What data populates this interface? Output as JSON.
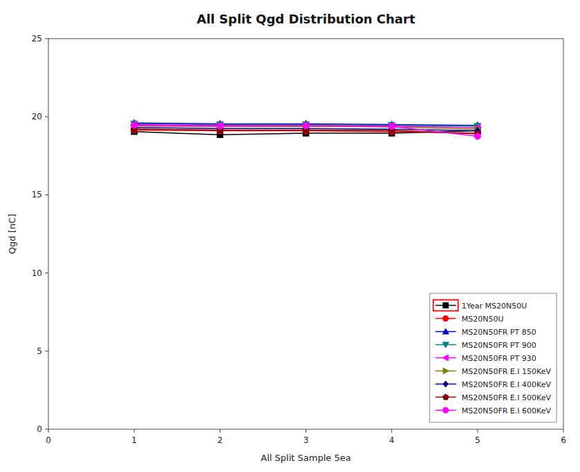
{
  "chart_data": {
    "type": "line",
    "title": "All Split Qgd Distribution Chart",
    "x_label": "All Split Sample 5ea",
    "y_label": "Qgd [nC]",
    "x": [
      1,
      2,
      3,
      4,
      5
    ],
    "xlim": [
      0,
      6
    ],
    "ylim": [
      0,
      25
    ],
    "xticks": [
      0,
      1,
      2,
      3,
      4,
      5,
      6
    ],
    "yticks": [
      0,
      5,
      10,
      15,
      20,
      25
    ],
    "grid": false,
    "legend": "lower right",
    "series": [
      {
        "name": "1Year MS20N50U",
        "color": "black",
        "marker": "square",
        "line_style": "solid",
        "values": [
          19.05,
          18.85,
          18.95,
          18.95,
          19.1
        ]
      },
      {
        "name": "MS20N50U",
        "color": "red",
        "marker": "circle",
        "line_style": "solid",
        "values": [
          19.15,
          19.1,
          19.1,
          19.05,
          18.95
        ]
      },
      {
        "name": "MS20N50FR PT 850",
        "color": "#0000CC",
        "marker": "triangle-up",
        "line_style": "solid",
        "values": [
          19.6,
          19.55,
          19.55,
          19.5,
          19.45
        ]
      },
      {
        "name": "MS20N50FR PT 900",
        "color": "#008080",
        "marker": "triangle-down",
        "line_style": "solid",
        "values": [
          19.55,
          19.5,
          19.5,
          19.45,
          19.4
        ]
      },
      {
        "name": "MS20N50FR PT 930",
        "color": "magenta",
        "marker": "triangle-left",
        "line_style": "solid",
        "values": [
          19.5,
          19.45,
          19.45,
          19.4,
          19.3
        ]
      },
      {
        "name": "MS20N50FR E.I 150KeV",
        "color": "#808000",
        "marker": "triangle-right",
        "line_style": "solid",
        "values": [
          19.4,
          19.38,
          19.38,
          19.35,
          19.2
        ]
      },
      {
        "name": "MS20N50FR E.I 400KeV",
        "color": "#000080",
        "marker": "diamond",
        "line_style": "solid",
        "values": [
          19.3,
          19.25,
          19.25,
          19.2,
          19.1
        ]
      },
      {
        "name": "MS20N50FR E.I 500KeV",
        "color": "#800000",
        "marker": "pentagon",
        "line_style": "solid",
        "values": [
          19.2,
          19.15,
          19.15,
          19.12,
          18.9
        ]
      },
      {
        "name": "MS20N50FR E.I 600KeV",
        "color": "#FF00FF",
        "marker": "circle",
        "line_style": "solid",
        "values": [
          19.45,
          19.4,
          19.42,
          19.38,
          18.75
        ]
      }
    ]
  }
}
